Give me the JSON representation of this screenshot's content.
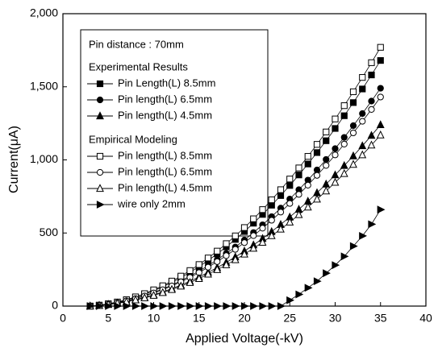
{
  "chart_data": {
    "type": "line",
    "xlabel": "Applied Voltage(-kV)",
    "ylabel": "Current(μA)",
    "xlim": [
      0,
      40
    ],
    "xticks": [
      0,
      5,
      10,
      15,
      20,
      25,
      30,
      35,
      40
    ],
    "ylim": [
      0,
      2000
    ],
    "yticks": [
      0,
      500,
      {
        "value": 1000,
        "label": "1,000"
      },
      {
        "value": 1500,
        "label": "1,500"
      },
      {
        "value": 2000,
        "label": "2,000"
      }
    ],
    "legend_title": "Pin distance : 70mm",
    "legend_groups": [
      "Experimental Results",
      "Empirical Modeling"
    ],
    "x": [
      3,
      4,
      5,
      6,
      7,
      8,
      9,
      10,
      11,
      12,
      13,
      14,
      15,
      16,
      17,
      18,
      19,
      20,
      21,
      22,
      23,
      24,
      25,
      26,
      27,
      28,
      29,
      30,
      31,
      32,
      33,
      34,
      35
    ],
    "series": [
      {
        "name": "Pin Length(L) 8.5mm",
        "group": 0,
        "marker": "square",
        "filled": true,
        "color": "#000000",
        "values": [
          0,
          6,
          15,
          27,
          42,
          60,
          81,
          105,
          132,
          162,
          195,
          231,
          270,
          312,
          357,
          405,
          456,
          510,
          567,
          627,
          690,
          756,
          825,
          897,
          972,
          1050,
          1131,
          1215,
          1302,
          1392,
          1485,
          1581,
          1680
        ]
      },
      {
        "name": "Pin length(L) 6.5mm",
        "group": 0,
        "marker": "circle",
        "filled": true,
        "color": "#000000",
        "values": [
          0,
          5,
          13,
          24,
          37,
          53,
          72,
          93,
          117,
          144,
          173,
          205,
          239,
          277,
          317,
          360,
          404,
          452,
          503,
          556,
          612,
          670,
          732,
          796,
          862,
          931,
          1003,
          1077,
          1154,
          1234,
          1317,
          1402,
          1490
        ]
      },
      {
        "name": "Pin length(L) 4.5mm",
        "group": 0,
        "marker": "triangle",
        "filled": true,
        "color": "#000000",
        "values": [
          0,
          4,
          11,
          20,
          31,
          44,
          60,
          78,
          97,
          120,
          144,
          170,
          199,
          231,
          263,
          299,
          336,
          376,
          418,
          462,
          509,
          558,
          609,
          662,
          717,
          775,
          834,
          897,
          961,
          1027,
          1096,
          1167,
          1240
        ]
      },
      {
        "name": "Pin length(L) 8.5mm",
        "group": 1,
        "marker": "square",
        "filled": false,
        "color": "#000000",
        "values": [
          0,
          6,
          16,
          28,
          44,
          63,
          85,
          111,
          139,
          171,
          205,
          243,
          284,
          329,
          376,
          427,
          480,
          537,
          597,
          660,
          727,
          796,
          869,
          945,
          1024,
          1106,
          1191,
          1280,
          1371,
          1466,
          1564,
          1665,
          1770
        ]
      },
      {
        "name": "Pin length(L) 6.5mm",
        "group": 1,
        "marker": "circle",
        "filled": false,
        "color": "#000000",
        "values": [
          0,
          5,
          13,
          23,
          36,
          51,
          69,
          90,
          112,
          138,
          166,
          196,
          229,
          266,
          304,
          345,
          388,
          434,
          482,
          533,
          587,
          643,
          702,
          764,
          827,
          894,
          962,
          1034,
          1108,
          1185,
          1264,
          1345,
          1430
        ]
      },
      {
        "name": "Pin length(L) 4.5mm",
        "group": 1,
        "marker": "triangle",
        "filled": false,
        "color": "#000000",
        "values": [
          0,
          4,
          11,
          19,
          29,
          42,
          56,
          73,
          92,
          113,
          136,
          161,
          188,
          218,
          249,
          282,
          317,
          355,
          395,
          436,
          481,
          526,
          574,
          625,
          677,
          731,
          787,
          846,
          906,
          969,
          1034,
          1101,
          1170
        ]
      },
      {
        "name": "wire only 2mm",
        "group": 1,
        "marker": "triangle-right",
        "filled": true,
        "color": "#000000",
        "values": [
          0,
          0,
          0,
          0,
          0,
          0,
          0,
          0,
          0,
          0,
          0,
          0,
          0,
          0,
          0,
          0,
          0,
          0,
          0,
          0,
          0,
          0,
          40,
          80,
          125,
          170,
          225,
          280,
          340,
          410,
          480,
          560,
          660
        ]
      }
    ]
  }
}
